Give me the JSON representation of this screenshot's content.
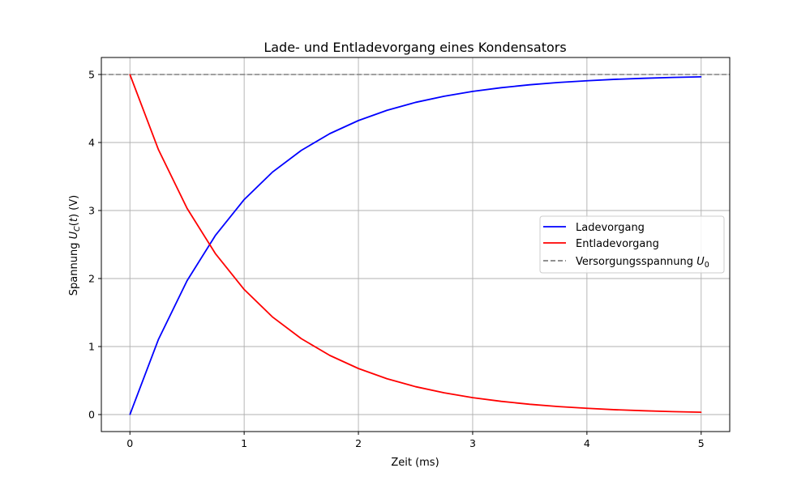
{
  "chart_data": {
    "type": "line",
    "title": "Lade- und Entladevorgang eines Kondensators",
    "xlabel": "Zeit (ms)",
    "ylabel_parts": [
      "Spannung ",
      "U",
      "C",
      "(",
      "t",
      ") (V)"
    ],
    "xlim": [
      -0.25,
      5.25
    ],
    "ylim": [
      -0.25,
      5.25
    ],
    "x_ticks": [
      0,
      1,
      2,
      3,
      4,
      5
    ],
    "y_ticks": [
      0,
      1,
      2,
      3,
      4,
      5
    ],
    "x_tick_labels": [
      "0",
      "1",
      "2",
      "3",
      "4",
      "5"
    ],
    "y_tick_labels": [
      "0",
      "1",
      "2",
      "3",
      "4",
      "5"
    ],
    "grid": true,
    "legend_position": "center-right",
    "x": [
      0,
      0.25,
      0.5,
      0.75,
      1,
      1.25,
      1.5,
      1.75,
      2,
      2.25,
      2.5,
      2.75,
      3,
      3.25,
      3.5,
      3.75,
      4,
      4.25,
      4.5,
      4.75,
      5
    ],
    "series": [
      {
        "name": "Ladevorgang",
        "color": "#0000ff",
        "values": [
          0,
          1.106,
          1.967,
          2.638,
          3.161,
          3.568,
          3.884,
          4.131,
          4.323,
          4.473,
          4.59,
          4.68,
          4.751,
          4.806,
          4.849,
          4.882,
          4.908,
          4.929,
          4.944,
          4.957,
          4.966
        ]
      },
      {
        "name": "Entladevorgang",
        "color": "#ff0000",
        "values": [
          5,
          3.894,
          3.033,
          2.362,
          1.839,
          1.432,
          1.116,
          0.869,
          0.677,
          0.527,
          0.41,
          0.32,
          0.249,
          0.194,
          0.151,
          0.118,
          0.092,
          0.071,
          0.056,
          0.043,
          0.034
        ]
      }
    ],
    "reference_line": {
      "name_parts": [
        "Versorgungsspannung ",
        "U",
        "0"
      ],
      "y": 5,
      "color": "#808080",
      "style": "dashed"
    },
    "axis_color": "#000000",
    "grid_color": "#b0b0b0"
  }
}
